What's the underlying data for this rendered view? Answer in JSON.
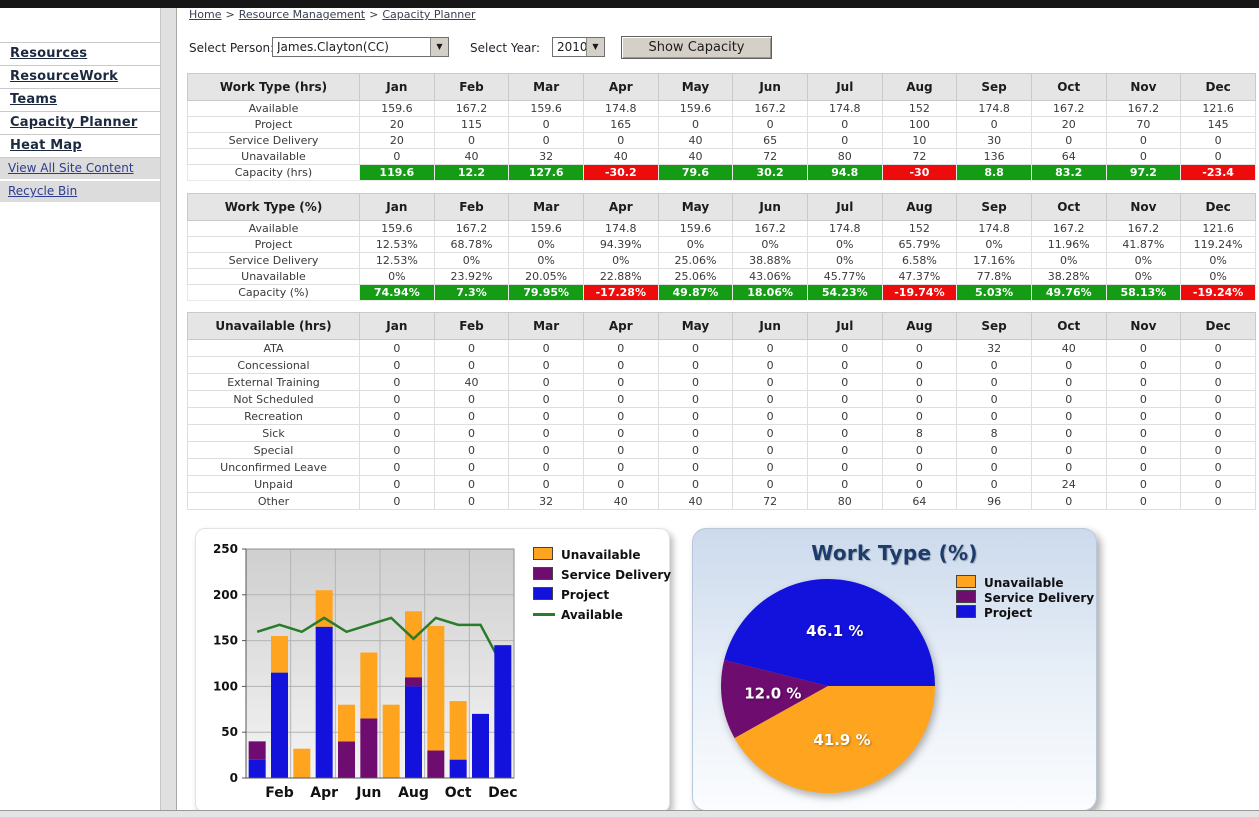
{
  "page": {
    "breadcrumb": {
      "items": [
        "Home",
        "Resource Management",
        "Capacity Planner"
      ],
      "separator": ">"
    },
    "controls": {
      "person_label": "Select Person:",
      "person_value": "James.Clayton(CC)",
      "year_label": "Select Year:",
      "year_value": "2010",
      "show_button": "Show Capacity"
    }
  },
  "sidebar": {
    "items": [
      "Resources",
      "ResourceWork",
      "Teams",
      "Capacity Planner",
      "Heat Map"
    ],
    "secondary": [
      "View All Site Content",
      "Recycle Bin"
    ]
  },
  "months": [
    "Jan",
    "Feb",
    "Mar",
    "Apr",
    "May",
    "Jun",
    "Jul",
    "Aug",
    "Sep",
    "Oct",
    "Nov",
    "Dec"
  ],
  "colors": {
    "capacity_positive": "#149c14",
    "capacity_negative": "#ee0b0b",
    "project_blue": "#1212dc",
    "service_delivery_purple": "#6f0c6f",
    "unavailable_orange": "#ffa41e",
    "available_green": "#2a7b2a",
    "pie_title_navy": "#1d3c6b"
  },
  "tables": [
    {
      "title": "Work Type (hrs)",
      "rows": [
        {
          "label": "Available",
          "values": [
            "159.6",
            "167.2",
            "159.6",
            "174.8",
            "159.6",
            "167.2",
            "174.8",
            "152",
            "174.8",
            "167.2",
            "167.2",
            "121.6"
          ]
        },
        {
          "label": "Project",
          "values": [
            "20",
            "115",
            "0",
            "165",
            "0",
            "0",
            "0",
            "100",
            "0",
            "20",
            "70",
            "145"
          ]
        },
        {
          "label": "Service Delivery",
          "values": [
            "20",
            "0",
            "0",
            "0",
            "40",
            "65",
            "0",
            "10",
            "30",
            "0",
            "0",
            "0"
          ]
        },
        {
          "label": "Unavailable",
          "values": [
            "0",
            "40",
            "32",
            "40",
            "40",
            "72",
            "80",
            "72",
            "136",
            "64",
            "0",
            "0"
          ]
        }
      ],
      "footer": {
        "label": "Capacity (hrs)",
        "values": [
          "119.6",
          "12.2",
          "127.6",
          "-30.2",
          "79.6",
          "30.2",
          "94.8",
          "-30",
          "8.8",
          "83.2",
          "97.2",
          "-23.4"
        ]
      }
    },
    {
      "title": "Work Type (%)",
      "rows": [
        {
          "label": "Available",
          "values": [
            "159.6",
            "167.2",
            "159.6",
            "174.8",
            "159.6",
            "167.2",
            "174.8",
            "152",
            "174.8",
            "167.2",
            "167.2",
            "121.6"
          ]
        },
        {
          "label": "Project",
          "values": [
            "12.53%",
            "68.78%",
            "0%",
            "94.39%",
            "0%",
            "0%",
            "0%",
            "65.79%",
            "0%",
            "11.96%",
            "41.87%",
            "119.24%"
          ]
        },
        {
          "label": "Service Delivery",
          "values": [
            "12.53%",
            "0%",
            "0%",
            "0%",
            "25.06%",
            "38.88%",
            "0%",
            "6.58%",
            "17.16%",
            "0%",
            "0%",
            "0%"
          ]
        },
        {
          "label": "Unavailable",
          "values": [
            "0%",
            "23.92%",
            "20.05%",
            "22.88%",
            "25.06%",
            "43.06%",
            "45.77%",
            "47.37%",
            "77.8%",
            "38.28%",
            "0%",
            "0%"
          ]
        }
      ],
      "footer": {
        "label": "Capacity (%)",
        "values": [
          "74.94%",
          "7.3%",
          "79.95%",
          "-17.28%",
          "49.87%",
          "18.06%",
          "54.23%",
          "-19.74%",
          "5.03%",
          "49.76%",
          "58.13%",
          "-19.24%"
        ]
      }
    },
    {
      "title": "Unavailable (hrs)",
      "rows": [
        {
          "label": "ATA",
          "values": [
            "0",
            "0",
            "0",
            "0",
            "0",
            "0",
            "0",
            "0",
            "32",
            "40",
            "0",
            "0"
          ]
        },
        {
          "label": "Concessional",
          "values": [
            "0",
            "0",
            "0",
            "0",
            "0",
            "0",
            "0",
            "0",
            "0",
            "0",
            "0",
            "0"
          ]
        },
        {
          "label": "External Training",
          "values": [
            "0",
            "40",
            "0",
            "0",
            "0",
            "0",
            "0",
            "0",
            "0",
            "0",
            "0",
            "0"
          ]
        },
        {
          "label": "Not Scheduled",
          "values": [
            "0",
            "0",
            "0",
            "0",
            "0",
            "0",
            "0",
            "0",
            "0",
            "0",
            "0",
            "0"
          ]
        },
        {
          "label": "Recreation",
          "values": [
            "0",
            "0",
            "0",
            "0",
            "0",
            "0",
            "0",
            "0",
            "0",
            "0",
            "0",
            "0"
          ]
        },
        {
          "label": "Sick",
          "values": [
            "0",
            "0",
            "0",
            "0",
            "0",
            "0",
            "0",
            "8",
            "8",
            "0",
            "0",
            "0"
          ]
        },
        {
          "label": "Special",
          "values": [
            "0",
            "0",
            "0",
            "0",
            "0",
            "0",
            "0",
            "0",
            "0",
            "0",
            "0",
            "0"
          ]
        },
        {
          "label": "Unconfirmed Leave",
          "values": [
            "0",
            "0",
            "0",
            "0",
            "0",
            "0",
            "0",
            "0",
            "0",
            "0",
            "0",
            "0"
          ]
        },
        {
          "label": "Unpaid",
          "values": [
            "0",
            "0",
            "0",
            "0",
            "0",
            "0",
            "0",
            "0",
            "0",
            "24",
            "0",
            "0"
          ]
        },
        {
          "label": "Other",
          "values": [
            "0",
            "0",
            "32",
            "40",
            "40",
            "72",
            "80",
            "64",
            "96",
            "0",
            "0",
            "0"
          ]
        }
      ],
      "footer": null
    }
  ],
  "chart_data": [
    {
      "type": "bar",
      "subtype": "stacked-bars-with-line",
      "categories": [
        "Jan",
        "Feb",
        "Mar",
        "Apr",
        "May",
        "Jun",
        "Jul",
        "Aug",
        "Sep",
        "Oct",
        "Nov",
        "Dec"
      ],
      "series": [
        {
          "name": "Project",
          "color": "#1212dc",
          "values": [
            20,
            115,
            0,
            165,
            0,
            0,
            0,
            100,
            0,
            20,
            70,
            145
          ]
        },
        {
          "name": "Service Delivery",
          "color": "#6f0c6f",
          "values": [
            20,
            0,
            0,
            0,
            40,
            65,
            0,
            10,
            30,
            0,
            0,
            0
          ]
        },
        {
          "name": "Unavailable",
          "color": "#ffa41e",
          "values": [
            0,
            40,
            32,
            40,
            40,
            72,
            80,
            72,
            136,
            64,
            0,
            0
          ]
        }
      ],
      "line_series": {
        "name": "Available",
        "color": "#2a7b2a",
        "values": [
          159.6,
          167.2,
          159.6,
          174.8,
          159.6,
          167.2,
          174.8,
          152,
          174.8,
          167.2,
          167.2,
          121.6
        ]
      },
      "ylim": [
        0,
        250
      ],
      "yticks": [
        0,
        50,
        100,
        150,
        200,
        250
      ],
      "xtick_labels": [
        "Feb",
        "Apr",
        "Jun",
        "Aug",
        "Oct",
        "Dec"
      ],
      "grid": true,
      "legend_position": "right",
      "legend": [
        "Unavailable",
        "Service Delivery",
        "Project",
        "Available"
      ]
    },
    {
      "type": "pie",
      "title": "Work Type (%)",
      "slices": [
        {
          "name": "Project",
          "value": 46.1,
          "label": "46.1 %",
          "color": "#1212dc"
        },
        {
          "name": "Service Delivery",
          "value": 12.0,
          "label": "12.0 %",
          "color": "#6f0c6f"
        },
        {
          "name": "Unavailable",
          "value": 41.9,
          "label": "41.9 %",
          "color": "#ffa41e"
        }
      ],
      "start_angle_deg": 0,
      "direction": "ccw",
      "legend_position": "right",
      "legend": [
        "Unavailable",
        "Service Delivery",
        "Project"
      ]
    }
  ]
}
